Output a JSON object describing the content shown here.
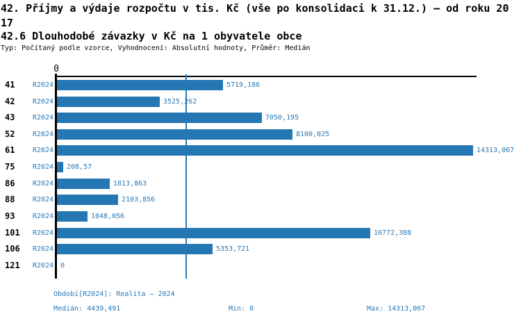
{
  "header": {
    "title": "42. Příjmy a výdaje rozpočtu v tis. Kč (vše po konsolidaci k 31.12.) – od roku 2017",
    "subtitle": "42.6 Dlouhodobé závazky v Kč na 1 obyvatele obce",
    "meta": "Typ: Počítaný podle vzorce, Vyhodnocení: Absolutní hodnoty, Průměr: Medián"
  },
  "chart_data": {
    "type": "bar",
    "orientation": "horizontal",
    "title": "42.6 Dlouhodobé závazky v Kč na 1 obyvatele obce",
    "xlabel": "",
    "ylabel": "",
    "x_axis": {
      "zero_label": "0",
      "min": 0,
      "max": 14313.067,
      "gridlines": false
    },
    "legend": "none",
    "series_label": "R2024",
    "categories": [
      "41",
      "42",
      "43",
      "52",
      "61",
      "75",
      "86",
      "88",
      "93",
      "101",
      "106",
      "121"
    ],
    "rows": [
      {
        "category": "41",
        "series": "R2024",
        "value": 5719.186,
        "value_label": "5719,186"
      },
      {
        "category": "42",
        "series": "R2024",
        "value": 3525.262,
        "value_label": "3525,262"
      },
      {
        "category": "43",
        "series": "R2024",
        "value": 7050.195,
        "value_label": "7050,195"
      },
      {
        "category": "52",
        "series": "R2024",
        "value": 8100.025,
        "value_label": "8100,025"
      },
      {
        "category": "61",
        "series": "R2024",
        "value": 14313.067,
        "value_label": "14313,067"
      },
      {
        "category": "75",
        "series": "R2024",
        "value": 208.57,
        "value_label": "208,57"
      },
      {
        "category": "86",
        "series": "R2024",
        "value": 1813.863,
        "value_label": "1813,863"
      },
      {
        "category": "88",
        "series": "R2024",
        "value": 2103.856,
        "value_label": "2103,856"
      },
      {
        "category": "93",
        "series": "R2024",
        "value": 1048.056,
        "value_label": "1048,056"
      },
      {
        "category": "101",
        "series": "R2024",
        "value": 10772.388,
        "value_label": "10772,388"
      },
      {
        "category": "106",
        "series": "R2024",
        "value": 5353.721,
        "value_label": "5353,721"
      },
      {
        "category": "121",
        "series": "R2024",
        "value": 0,
        "value_label": "0"
      }
    ],
    "median_line": {
      "value": 4439.491
    },
    "colors": {
      "bar": "#2577b4",
      "blue_text": "#2878b6",
      "axis": "#000000"
    }
  },
  "footer": {
    "period": "Období[R2024]: Realita – 2024",
    "median": "Medián: 4439,491",
    "min": "Min: 0",
    "max": "Max: 14313,067"
  }
}
